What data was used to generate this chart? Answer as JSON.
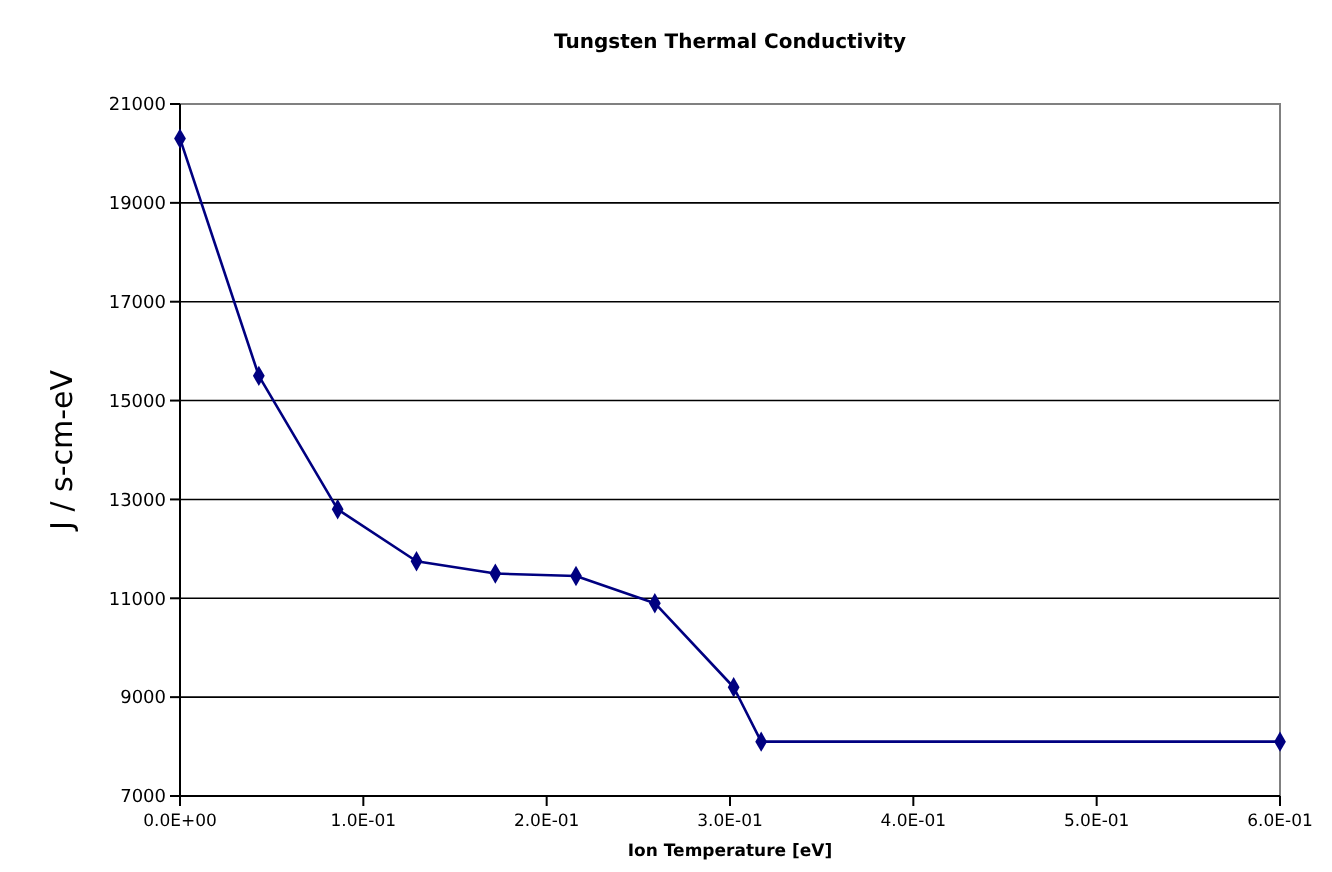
{
  "chart_data": {
    "type": "line",
    "title": "Tungsten Thermal Conductivity",
    "xlabel": "Ion Temperature [eV]",
    "ylabel": "J / s-cm-eV",
    "x": [
      0,
      0.043,
      0.086,
      0.129,
      0.172,
      0.216,
      0.259,
      0.302,
      0.317,
      0.6
    ],
    "series": [
      {
        "color": "#000080",
        "values": [
          20300,
          15500,
          12800,
          11750,
          11500,
          11450,
          10900,
          9200,
          8100,
          8100
        ]
      }
    ],
    "xlim": [
      0,
      0.6
    ],
    "xticks": [
      {
        "value": 0,
        "label": "0.0E+00"
      },
      {
        "value": 0.1,
        "label": "1.0E-01"
      },
      {
        "value": 0.2,
        "label": "2.0E-01"
      },
      {
        "value": 0.3,
        "label": "3.0E-01"
      },
      {
        "value": 0.4,
        "label": "4.0E-01"
      },
      {
        "value": 0.5,
        "label": "5.0E-01"
      },
      {
        "value": 0.6,
        "label": "6.0E-01"
      }
    ],
    "ylim": [
      7000,
      21000
    ],
    "yticks": [
      7000,
      9000,
      11000,
      13000,
      15000,
      17000,
      19000,
      21000
    ],
    "grid": "y",
    "marker": "diamond",
    "line_style": "solid"
  }
}
